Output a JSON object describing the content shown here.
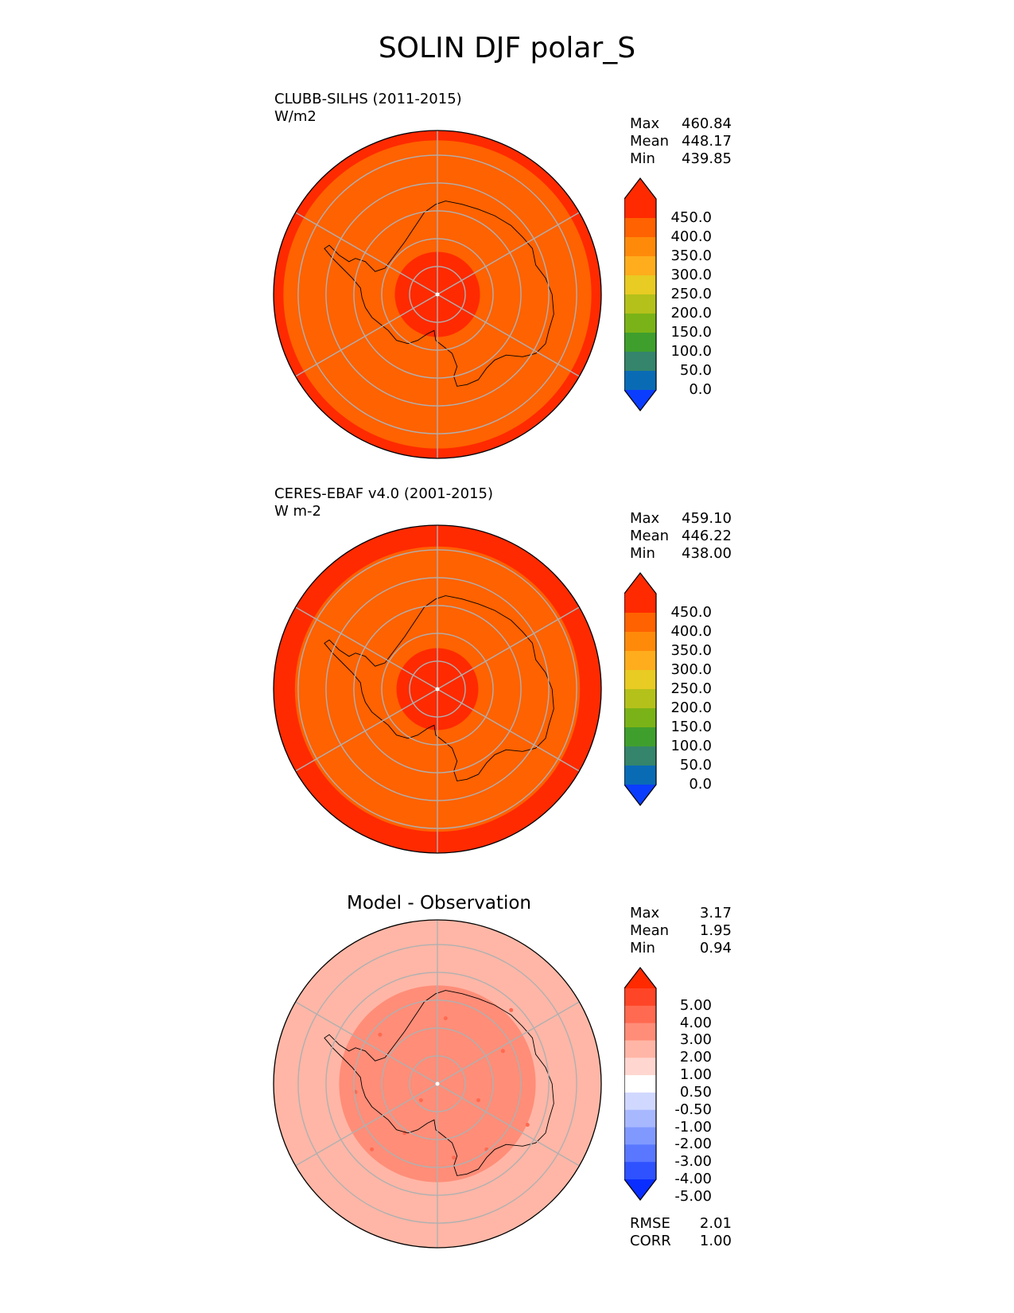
{
  "figure": {
    "title": "SOLIN DJF polar_S"
  },
  "chart_data": [
    {
      "type": "heatmap",
      "projection": "south-polar-stereographic",
      "label_line1": "CLUBB-SILHS (2011-2015)",
      "label_line2": "W/m2",
      "stats": {
        "max_label": "Max",
        "max": "460.84",
        "mean_label": "Mean",
        "mean": "448.17",
        "min_label": "Min",
        "min": "439.85"
      },
      "colorbar": {
        "colors": [
          "#0b3dff",
          "#0a6bb5",
          "#34856b",
          "#3f9f2d",
          "#7ab317",
          "#b4c11a",
          "#e8cb23",
          "#ffad1c",
          "#ff8a0a",
          "#ff6200",
          "#ff2a00",
          "#ff2a00"
        ],
        "ticks": [
          "450.0",
          "400.0",
          "350.0",
          "300.0",
          "250.0",
          "200.0",
          "150.0",
          "100.0",
          "50.0",
          "0.0"
        ],
        "extend": "both"
      },
      "zones": [
        {
          "from_edge": 0.0,
          "to": 0.94,
          "color": "#ff2a00",
          "value_range": [
            450,
            461
          ]
        },
        {
          "from_edge": 0.94,
          "to": 0.26,
          "color": "#ff6200",
          "value_range": [
            440,
            450
          ]
        },
        {
          "from_edge": 0.26,
          "to": 0.0,
          "color": "#ff2a00",
          "value_range": [
            450,
            461
          ]
        }
      ]
    },
    {
      "type": "heatmap",
      "projection": "south-polar-stereographic",
      "label_line1": "CERES-EBAF v4.0 (2001-2015)",
      "label_line2": "W m-2",
      "stats": {
        "max_label": "Max",
        "max": "459.10",
        "mean_label": "Mean",
        "mean": "446.22",
        "min_label": "Min",
        "min": "438.00"
      },
      "colorbar": {
        "colors": [
          "#0b3dff",
          "#0a6bb5",
          "#34856b",
          "#3f9f2d",
          "#7ab317",
          "#b4c11a",
          "#e8cb23",
          "#ffad1c",
          "#ff8a0a",
          "#ff6200",
          "#ff2a00",
          "#ff2a00"
        ],
        "ticks": [
          "450.0",
          "400.0",
          "350.0",
          "300.0",
          "250.0",
          "200.0",
          "150.0",
          "100.0",
          "50.0",
          "0.0"
        ],
        "extend": "both"
      },
      "zones": [
        {
          "from_edge": 0.0,
          "to": 0.87,
          "color": "#ff2a00",
          "value_range": [
            450,
            460
          ]
        },
        {
          "from_edge": 0.87,
          "to": 0.25,
          "color": "#ff6200",
          "value_range": [
            438,
            450
          ]
        },
        {
          "from_edge": 0.25,
          "to": 0.0,
          "color": "#ff2a00",
          "value_range": [
            450,
            460
          ]
        }
      ]
    },
    {
      "type": "heatmap",
      "projection": "south-polar-stereographic",
      "title": "Model - Observation",
      "stats": {
        "max_label": "Max",
        "max": "3.17",
        "mean_label": "Mean",
        "mean": "1.95",
        "min_label": "Min",
        "min": "0.94"
      },
      "colorbar": {
        "colors": [
          "#0a2eff",
          "#2e52ff",
          "#5977ff",
          "#8099ff",
          "#a8b8ff",
          "#d0d8ff",
          "#ffffff",
          "#ffd6d0",
          "#ffb6a6",
          "#ff8d78",
          "#ff6a50",
          "#ff4527",
          "#ff2a00"
        ],
        "ticks": [
          "5.00",
          "4.00",
          "3.00",
          "2.00",
          "1.00",
          "0.50",
          "-0.50",
          "-1.00",
          "-2.00",
          "-3.00",
          "-4.00",
          "-5.00"
        ],
        "extend": "both"
      },
      "zones": [
        {
          "from_edge": 0.0,
          "to": 0.6,
          "color": "#ffb6a6",
          "value_range": [
            1,
            2
          ]
        },
        {
          "from_edge": 0.6,
          "to": 0.0,
          "color": "#ff8d78",
          "value_range": [
            2,
            3
          ]
        }
      ],
      "metrics": {
        "rmse_label": "RMSE",
        "rmse": "2.01",
        "corr_label": "CORR",
        "corr": "1.00"
      }
    }
  ]
}
